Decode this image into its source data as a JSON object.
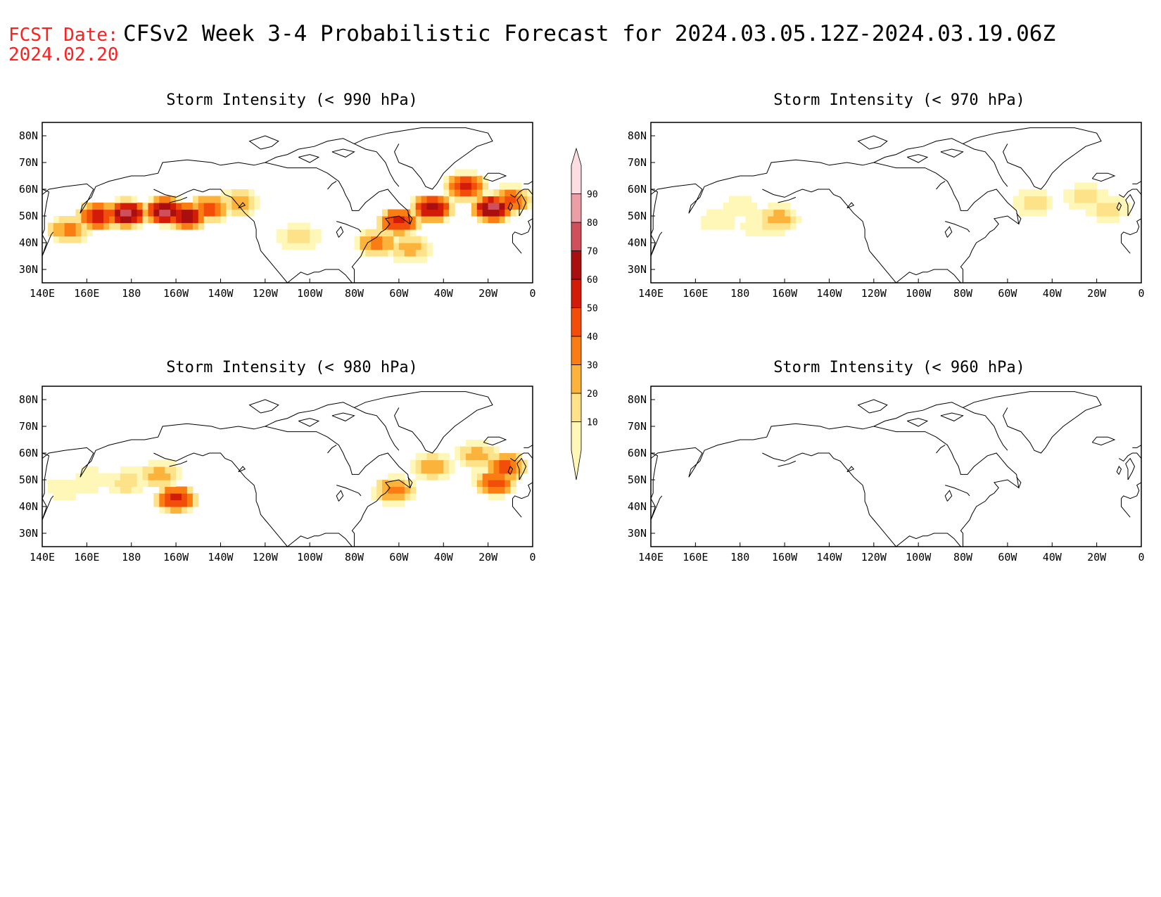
{
  "header": {
    "fcst_label": "FCST Date:",
    "fcst_date": "2024.02.20",
    "title": "CFSv2 Week 3-4 Probabilistic Forecast for 2024.03.05.12Z-2024.03.19.06Z"
  },
  "axes": {
    "x_ticks": [
      "140E",
      "160E",
      "180",
      "160W",
      "140W",
      "120W",
      "100W",
      "80W",
      "60W",
      "40W",
      "20W",
      "0"
    ],
    "y_ticks": [
      "30N",
      "40N",
      "50N",
      "60N",
      "70N",
      "80N"
    ],
    "lon_range_deg_east": [
      140,
      360
    ],
    "lat_range": [
      25,
      85
    ]
  },
  "colorbar": {
    "levels": [
      10,
      20,
      30,
      40,
      50,
      60,
      70,
      80,
      90
    ],
    "labels": [
      "10",
      "20",
      "30",
      "40",
      "50",
      "60",
      "70",
      "80",
      "90"
    ],
    "colors": [
      "#fff7b8",
      "#fde289",
      "#fcb33c",
      "#f97d12",
      "#f24e0a",
      "#d21c08",
      "#a80f0e",
      "#cf4f5b",
      "#ec9ea6",
      "#fbdde2"
    ]
  },
  "panels": [
    {
      "title": "Storm Intensity (< 990 hPa)",
      "blobs": [
        {
          "lon": 178,
          "lat": 51,
          "level": 8
        },
        {
          "lon": 195,
          "lat": 52,
          "level": 8
        },
        {
          "lon": 205,
          "lat": 50,
          "level": 7
        },
        {
          "lon": 165,
          "lat": 50,
          "level": 6
        },
        {
          "lon": 215,
          "lat": 53,
          "level": 5
        },
        {
          "lon": 152,
          "lat": 45,
          "level": 4
        },
        {
          "lon": 228,
          "lat": 55,
          "level": 3
        },
        {
          "lon": 255,
          "lat": 42,
          "level": 2
        },
        {
          "lon": 300,
          "lat": 48,
          "level": 6
        },
        {
          "lon": 315,
          "lat": 53,
          "level": 7
        },
        {
          "lon": 330,
          "lat": 61,
          "level": 6
        },
        {
          "lon": 342,
          "lat": 53,
          "level": 8
        },
        {
          "lon": 350,
          "lat": 56,
          "level": 5
        },
        {
          "lon": 290,
          "lat": 40,
          "level": 4
        },
        {
          "lon": 305,
          "lat": 38,
          "level": 3
        }
      ]
    },
    {
      "title": "Storm Intensity (< 970 hPa)",
      "blobs": [
        {
          "lon": 170,
          "lat": 48,
          "level": 1
        },
        {
          "lon": 180,
          "lat": 53,
          "level": 1
        },
        {
          "lon": 197,
          "lat": 49,
          "level": 3
        },
        {
          "lon": 188,
          "lat": 46,
          "level": 1
        },
        {
          "lon": 312,
          "lat": 55,
          "level": 2
        },
        {
          "lon": 335,
          "lat": 57,
          "level": 2
        },
        {
          "lon": 345,
          "lat": 53,
          "level": 2
        }
      ]
    },
    {
      "title": "Storm Intensity (< 980 hPa)",
      "blobs": [
        {
          "lon": 178,
          "lat": 49,
          "level": 2
        },
        {
          "lon": 193,
          "lat": 52,
          "level": 3
        },
        {
          "lon": 200,
          "lat": 43,
          "level": 6
        },
        {
          "lon": 162,
          "lat": 50,
          "level": 1
        },
        {
          "lon": 150,
          "lat": 47,
          "level": 1
        },
        {
          "lon": 298,
          "lat": 46,
          "level": 4
        },
        {
          "lon": 315,
          "lat": 55,
          "level": 3
        },
        {
          "lon": 335,
          "lat": 59,
          "level": 3
        },
        {
          "lon": 343,
          "lat": 49,
          "level": 5
        },
        {
          "lon": 348,
          "lat": 55,
          "level": 5
        }
      ]
    },
    {
      "title": "Storm Intensity (< 960 hPa)",
      "blobs": []
    }
  ]
}
